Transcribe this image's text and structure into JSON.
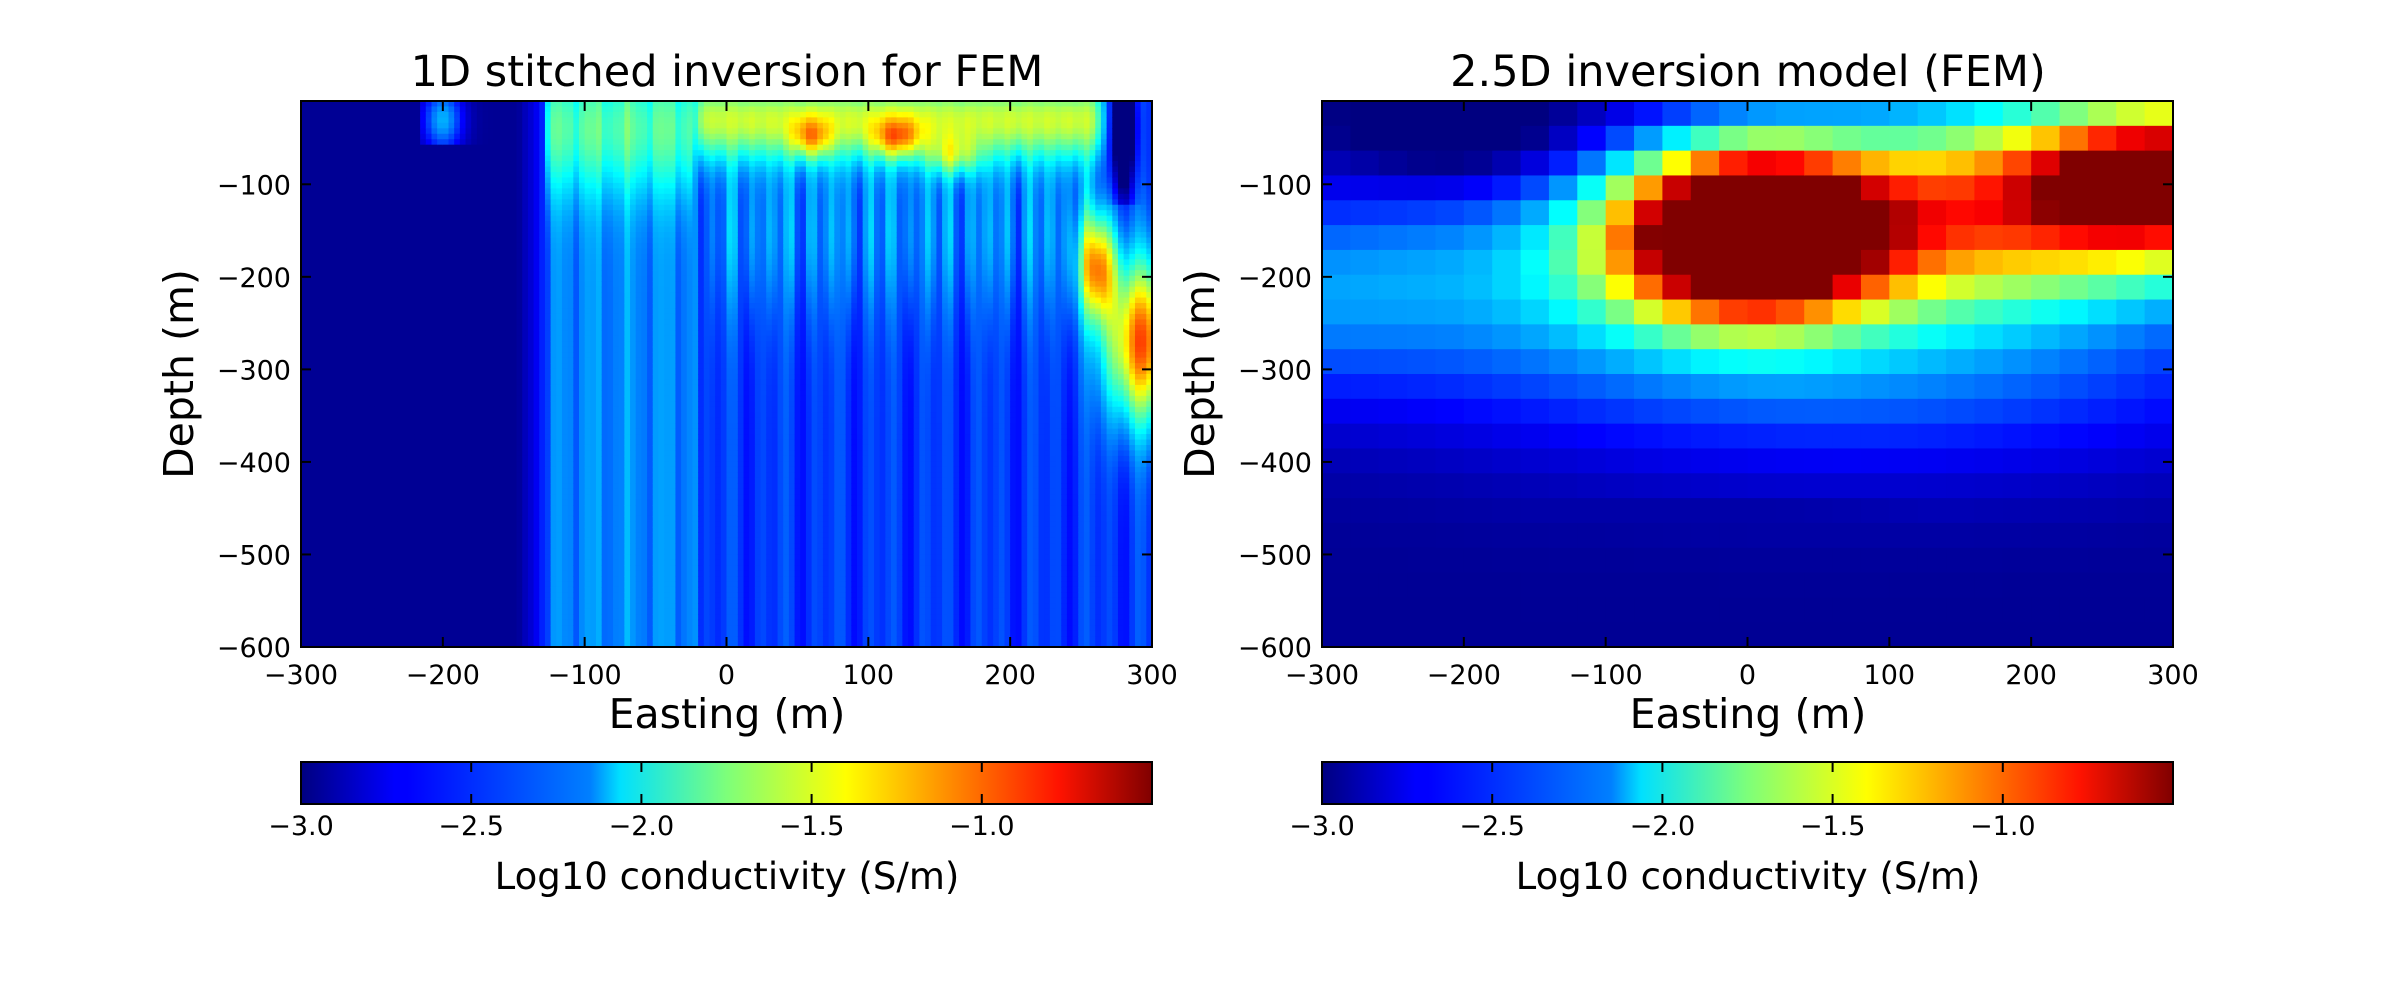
{
  "chart_data": [
    {
      "type": "heatmap",
      "title": "1D stitched inversion for FEM",
      "xlabel": "Easting (m)",
      "ylabel": "Depth (m)",
      "xlim": [
        -300,
        300
      ],
      "ylim": [
        -600,
        -10
      ],
      "xticks": [
        "−300",
        "−200",
        "−100",
        "0",
        "100",
        "200",
        "300"
      ],
      "yticks": [
        "−100",
        "−200",
        "−300",
        "−400",
        "−500",
        "−600"
      ],
      "colormap": "jet",
      "style": "smooth",
      "value_range": [
        -3.0,
        -0.5
      ],
      "colorbar": {
        "label": "Log10 conductivity (S/m)",
        "ticks": [
          "−3.0",
          "−2.5",
          "−2.0",
          "−1.5",
          "−1.0"
        ]
      },
      "features": [
        {
          "desc": "resistive background west of -130 m",
          "x_range": [
            -300,
            -130
          ],
          "value": -2.95
        },
        {
          "desc": "moderately conductive columns",
          "x_range": [
            -130,
            -20
          ],
          "value": -2.25
        },
        {
          "desc": "shallow conductive layer",
          "x_range": [
            -20,
            290
          ],
          "depth_range": [
            -10,
            -80
          ],
          "value": -1.55
        },
        {
          "desc": "conductive anomaly at east edge",
          "x": 290,
          "depth": -270,
          "value": -1.0
        }
      ]
    },
    {
      "type": "heatmap",
      "title": "2.5D inversion model (FEM)",
      "xlabel": "Easting (m)",
      "ylabel": "Depth (m)",
      "xlim": [
        -300,
        300
      ],
      "ylim": [
        -600,
        -10
      ],
      "xticks": [
        "−300",
        "−200",
        "−100",
        "0",
        "100",
        "200",
        "300"
      ],
      "yticks": [
        "−100",
        "−200",
        "−300",
        "−400",
        "−500",
        "−600"
      ],
      "colormap": "jet",
      "style": "blocky",
      "value_range": [
        -3.0,
        -0.5
      ],
      "colorbar": {
        "label": "Log10 conductivity (S/m)",
        "ticks": [
          "−3.0",
          "−2.5",
          "−2.0",
          "−1.5",
          "−1.0"
        ]
      },
      "features": [
        {
          "desc": "conductive body",
          "x": 0,
          "depth": -150,
          "value": -0.55
        },
        {
          "desc": "conductive dipping layer to east",
          "x": 300,
          "depth": -100,
          "value": -0.75
        },
        {
          "desc": "resistive basement",
          "depth_range": [
            -450,
            -600
          ],
          "value": -2.95
        }
      ]
    }
  ]
}
